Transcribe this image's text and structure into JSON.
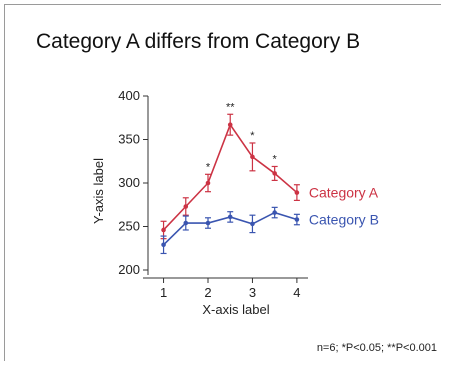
{
  "chart_data": {
    "type": "line",
    "title": "Category A differs from Category B",
    "xlabel": "X-axis label",
    "ylabel": "Y-axis label",
    "xlim": [
      0.65,
      4.25
    ],
    "ylim": [
      200,
      400
    ],
    "xticks": [
      1,
      2,
      3,
      4
    ],
    "yticks": [
      200,
      250,
      300,
      350,
      400
    ],
    "x": [
      1,
      1.5,
      2,
      2.5,
      3,
      3.5,
      4
    ],
    "series": [
      {
        "name": "Category A",
        "color": "#cc3344",
        "values": [
          246,
          273,
          300,
          367,
          330,
          311,
          289
        ],
        "errors": [
          10,
          10,
          10,
          12,
          16,
          8,
          9
        ]
      },
      {
        "name": "Category B",
        "color": "#3a55b0",
        "values": [
          229,
          254,
          254,
          261,
          253,
          266,
          258
        ],
        "errors": [
          10,
          8,
          6,
          6,
          10,
          6,
          6
        ]
      }
    ],
    "significance": [
      {
        "x": 2,
        "label": "*"
      },
      {
        "x": 2.5,
        "label": "**"
      },
      {
        "x": 3,
        "label": "*"
      },
      {
        "x": 3.5,
        "label": "*"
      }
    ],
    "footnote": "n=6; *P<0.05; **P<0.001",
    "grid": false,
    "legend": "right"
  }
}
